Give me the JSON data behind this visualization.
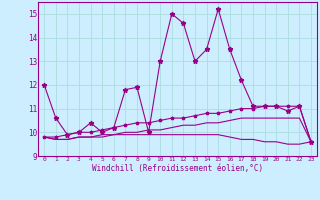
{
  "xlabel": "Windchill (Refroidissement éolien,°C)",
  "x": [
    0,
    1,
    2,
    3,
    4,
    5,
    6,
    7,
    8,
    9,
    10,
    11,
    12,
    13,
    14,
    15,
    16,
    17,
    18,
    19,
    20,
    21,
    22,
    23
  ],
  "line1": [
    12.0,
    10.6,
    9.9,
    10.0,
    10.4,
    10.0,
    10.2,
    11.8,
    11.9,
    10.0,
    13.0,
    15.0,
    14.6,
    13.0,
    13.5,
    15.2,
    13.5,
    12.2,
    11.1,
    11.1,
    11.1,
    10.9,
    11.1,
    9.6
  ],
  "line2": [
    9.8,
    9.8,
    9.9,
    10.0,
    10.0,
    10.1,
    10.2,
    10.3,
    10.4,
    10.4,
    10.5,
    10.6,
    10.6,
    10.7,
    10.8,
    10.8,
    10.9,
    11.0,
    11.0,
    11.1,
    11.1,
    11.1,
    11.1,
    9.6
  ],
  "line3": [
    9.8,
    9.7,
    9.7,
    9.8,
    9.8,
    9.8,
    9.9,
    9.9,
    9.9,
    9.9,
    9.9,
    9.9,
    9.9,
    9.9,
    9.9,
    9.9,
    9.8,
    9.7,
    9.7,
    9.6,
    9.6,
    9.5,
    9.5,
    9.6
  ],
  "line4": [
    9.8,
    9.7,
    9.7,
    9.8,
    9.8,
    9.9,
    9.9,
    10.0,
    10.0,
    10.1,
    10.1,
    10.2,
    10.3,
    10.3,
    10.4,
    10.4,
    10.5,
    10.6,
    10.6,
    10.6,
    10.6,
    10.6,
    10.6,
    9.6
  ],
  "color": "#990088",
  "bg_color": "#cceeff",
  "grid_color": "#aadddd",
  "ylim": [
    9.0,
    15.5
  ],
  "yticks": [
    9,
    10,
    11,
    12,
    13,
    14,
    15
  ],
  "xlim": [
    -0.5,
    23.5
  ]
}
